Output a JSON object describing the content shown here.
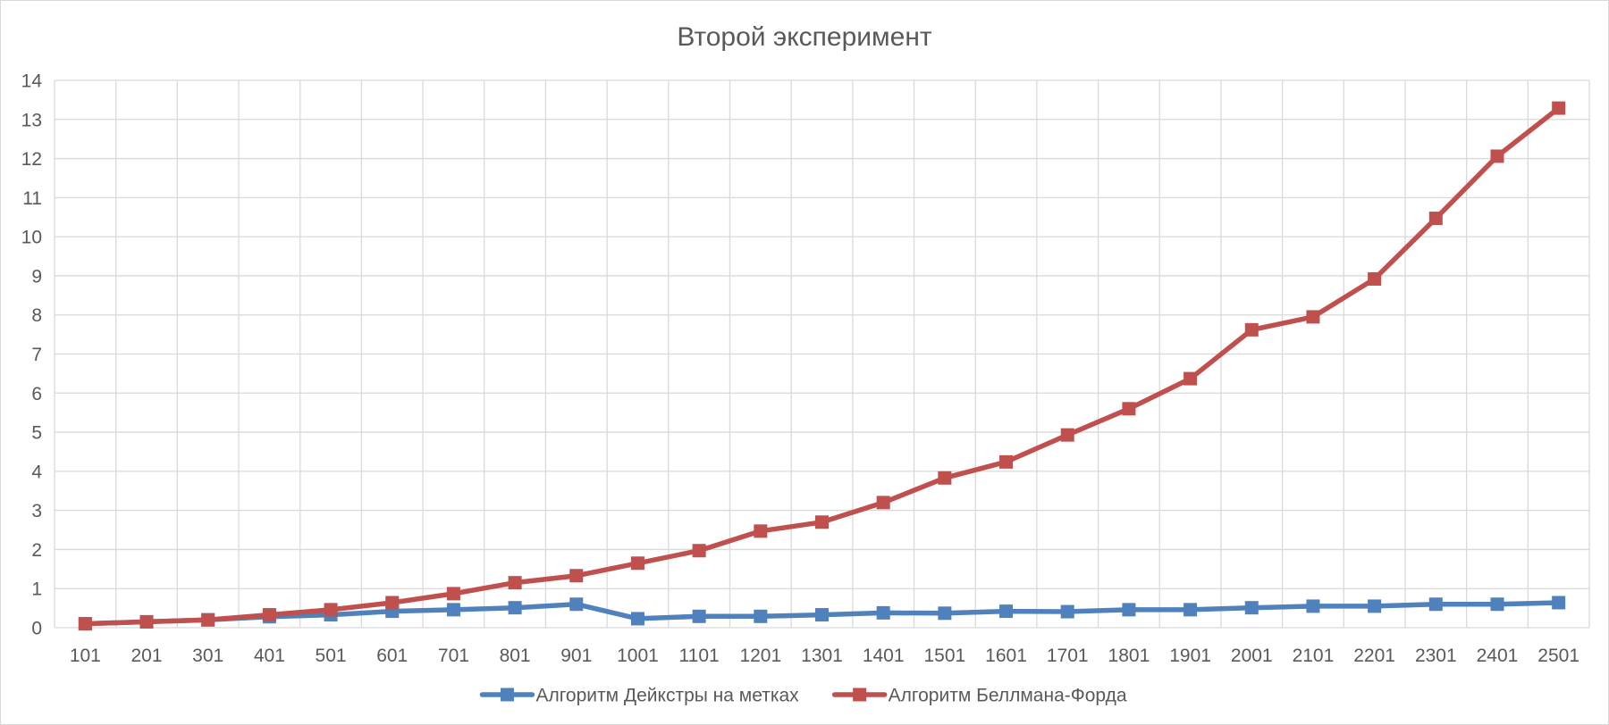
{
  "chart_data": {
    "type": "line",
    "title": "Второй эксперимент",
    "xlabel": "",
    "ylabel": "",
    "categories": [
      "101",
      "201",
      "301",
      "401",
      "501",
      "601",
      "701",
      "801",
      "901",
      "1001",
      "1101",
      "1201",
      "1301",
      "1401",
      "1501",
      "1601",
      "1701",
      "1801",
      "1901",
      "2001",
      "2101",
      "2201",
      "2301",
      "2401",
      "2501"
    ],
    "ylim": [
      0,
      14
    ],
    "yticks": [
      0,
      1,
      2,
      3,
      4,
      5,
      6,
      7,
      8,
      9,
      10,
      11,
      12,
      13,
      14
    ],
    "grid": true,
    "legend_position": "bottom",
    "series": [
      {
        "name": "Алгоритм Дейкстры на метках",
        "color": "#4F81BD",
        "marker": "square",
        "values": [
          0.1,
          0.15,
          0.2,
          0.28,
          0.33,
          0.42,
          0.46,
          0.51,
          0.6,
          0.23,
          0.29,
          0.29,
          0.33,
          0.38,
          0.37,
          0.42,
          0.41,
          0.46,
          0.46,
          0.51,
          0.55,
          0.55,
          0.6,
          0.6,
          0.64
        ]
      },
      {
        "name": "Алгоритм Беллмана-Форда",
        "color": "#C0504D",
        "marker": "square",
        "values": [
          0.1,
          0.15,
          0.2,
          0.33,
          0.46,
          0.64,
          0.87,
          1.15,
          1.33,
          1.65,
          1.97,
          2.47,
          2.7,
          3.2,
          3.83,
          4.24,
          4.93,
          5.6,
          6.37,
          7.62,
          7.95,
          8.92,
          10.47,
          12.06,
          13.29
        ]
      }
    ]
  }
}
